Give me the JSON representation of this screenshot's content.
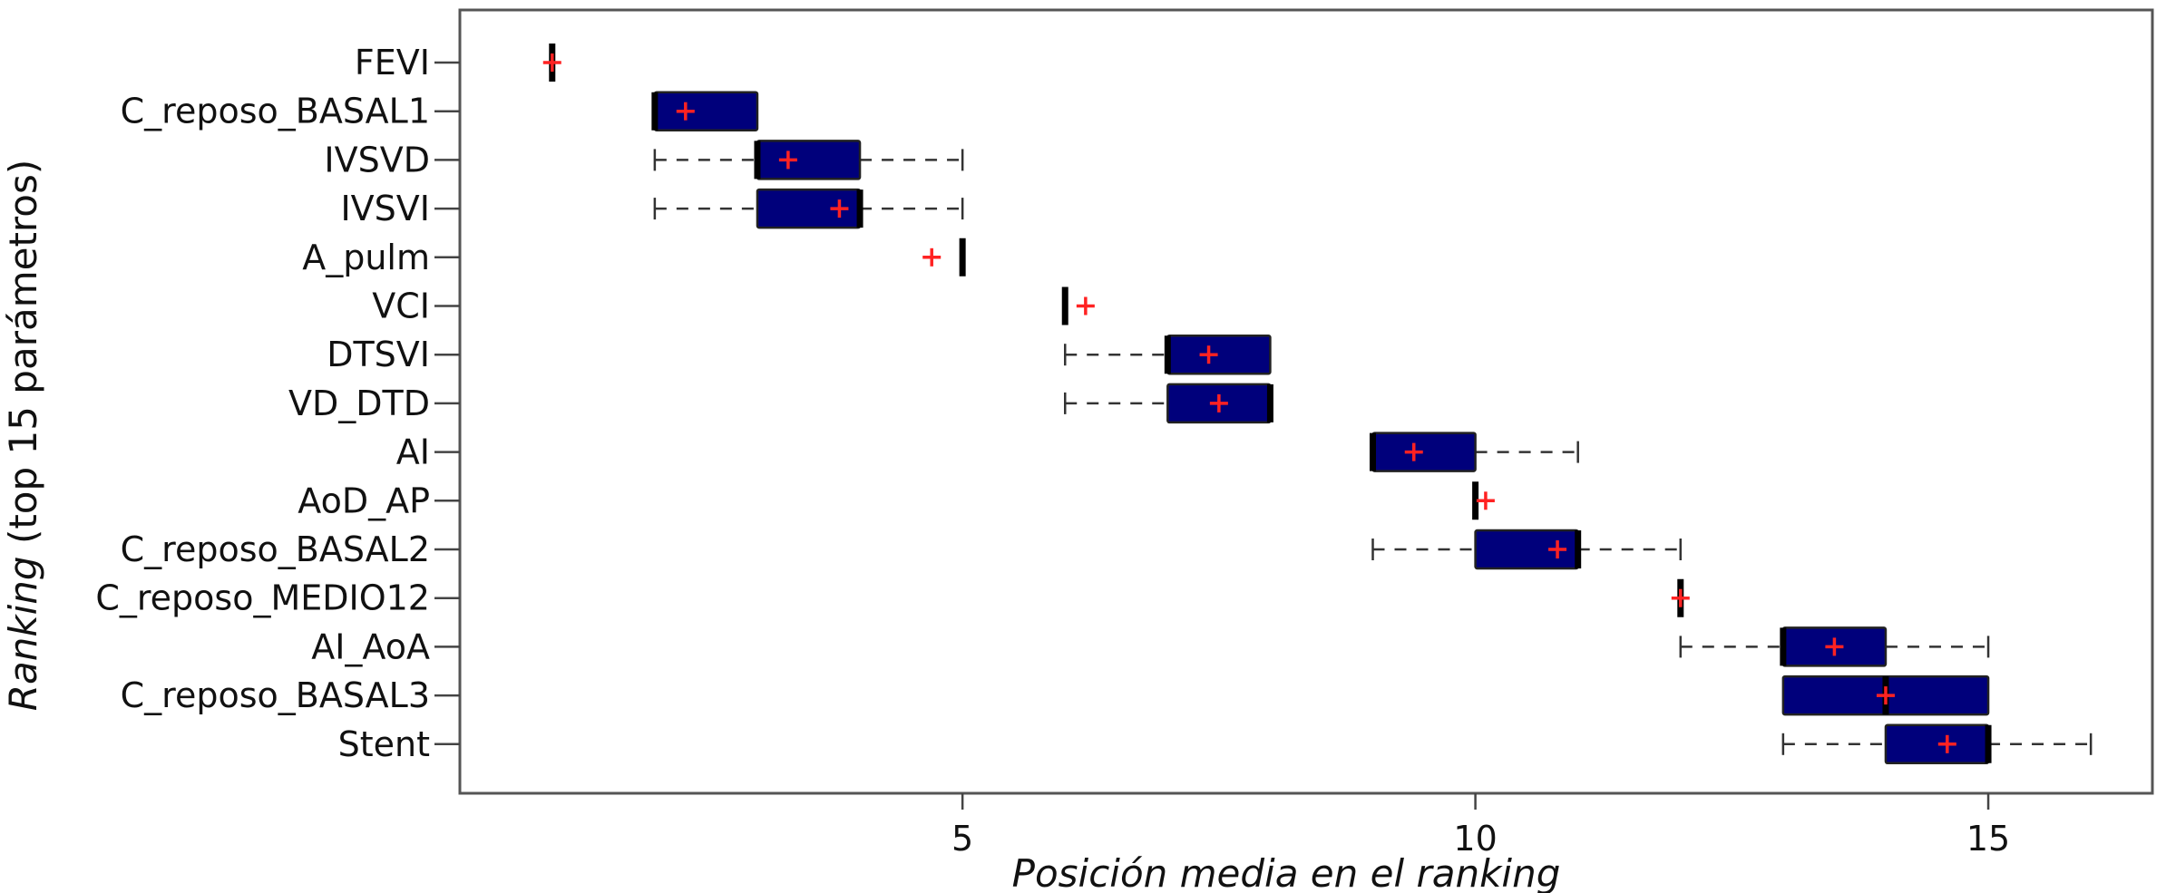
{
  "chart_data": {
    "type": "boxplot",
    "orientation": "horizontal",
    "xlabel": "Posición media en el ranking",
    "ylabel": {
      "italic": "Ranking",
      "rest": " (top 15 parámetros)"
    },
    "xlim": [
      0.1,
      16.6
    ],
    "xticks": [
      5,
      10,
      15
    ],
    "grid": false,
    "colors": {
      "box_fill": "#00007b",
      "median": "#000000",
      "whisker": "#333333",
      "mean_marker": "#ff2222"
    },
    "categories": [
      "FEVI",
      "C_reposo_BASAL1",
      "IVSVD",
      "IVSVI",
      "A_pulm",
      "VCI",
      "DTSVI",
      "VD_DTD",
      "AI",
      "AoD_AP",
      "C_reposo_BASAL2",
      "C_reposo_MEDIO12",
      "AI_AoA",
      "C_reposo_BASAL3",
      "Stent"
    ],
    "boxes": [
      {
        "label": "FEVI",
        "whislo": 1,
        "q1": 1,
        "med": 1,
        "q3": 1,
        "whishi": 1,
        "mean": 1.0
      },
      {
        "label": "C_reposo_BASAL1",
        "whislo": 2,
        "q1": 2,
        "med": 2,
        "q3": 3,
        "whishi": 3,
        "mean": 2.3
      },
      {
        "label": "IVSVD",
        "whislo": 2,
        "q1": 3,
        "med": 3,
        "q3": 4,
        "whishi": 5,
        "mean": 3.3
      },
      {
        "label": "IVSVI",
        "whislo": 2,
        "q1": 3,
        "med": 4,
        "q3": 4,
        "whishi": 5,
        "mean": 3.8
      },
      {
        "label": "A_pulm",
        "whislo": 5,
        "q1": 5,
        "med": 5,
        "q3": 5,
        "whishi": 5,
        "mean": 4.7
      },
      {
        "label": "VCI",
        "whislo": 6,
        "q1": 6,
        "med": 6,
        "q3": 6,
        "whishi": 6,
        "mean": 6.2
      },
      {
        "label": "DTSVI",
        "whislo": 6,
        "q1": 7,
        "med": 7,
        "q3": 8,
        "whishi": 8,
        "mean": 7.4
      },
      {
        "label": "VD_DTD",
        "whislo": 6,
        "q1": 7,
        "med": 8,
        "q3": 8,
        "whishi": 8,
        "mean": 7.5
      },
      {
        "label": "AI",
        "whislo": 9,
        "q1": 9,
        "med": 9,
        "q3": 10,
        "whishi": 11,
        "mean": 9.4
      },
      {
        "label": "AoD_AP",
        "whislo": 10,
        "q1": 10,
        "med": 10,
        "q3": 10,
        "whishi": 10,
        "mean": 10.1
      },
      {
        "label": "C_reposo_BASAL2",
        "whislo": 9,
        "q1": 10,
        "med": 11,
        "q3": 11,
        "whishi": 12,
        "mean": 10.8
      },
      {
        "label": "C_reposo_MEDIO12",
        "whislo": 12,
        "q1": 12,
        "med": 12,
        "q3": 12,
        "whishi": 12,
        "mean": 12.0
      },
      {
        "label": "AI_AoA",
        "whislo": 12,
        "q1": 13,
        "med": 13,
        "q3": 14,
        "whishi": 15,
        "mean": 13.5
      },
      {
        "label": "C_reposo_BASAL3",
        "whislo": 13,
        "q1": 13,
        "med": 14,
        "q3": 15,
        "whishi": 15,
        "mean": 14.0
      },
      {
        "label": "Stent",
        "whislo": 13,
        "q1": 14,
        "med": 15,
        "q3": 15,
        "whishi": 16,
        "mean": 14.6
      }
    ]
  }
}
